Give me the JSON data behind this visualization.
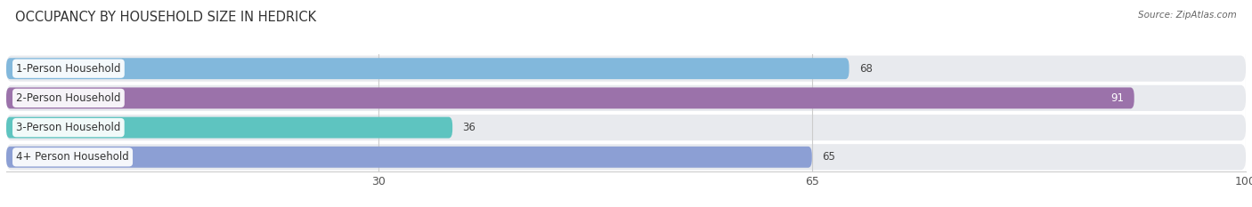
{
  "title": "OCCUPANCY BY HOUSEHOLD SIZE IN HEDRICK",
  "source": "Source: ZipAtlas.com",
  "categories": [
    "1-Person Household",
    "2-Person Household",
    "3-Person Household",
    "4+ Person Household"
  ],
  "values": [
    68,
    91,
    36,
    65
  ],
  "bar_colors": [
    "#82B8DC",
    "#9B72AA",
    "#5EC4C0",
    "#8C9FD4"
  ],
  "value_inside": [
    false,
    true,
    false,
    false
  ],
  "xlim": [
    0,
    100
  ],
  "xticks": [
    30,
    65,
    100
  ],
  "bar_height": 0.72,
  "background_color": "#ffffff",
  "row_bg_color": "#e8eaee",
  "title_fontsize": 10.5,
  "label_fontsize": 8.5,
  "value_fontsize": 8.5,
  "tick_fontsize": 9
}
